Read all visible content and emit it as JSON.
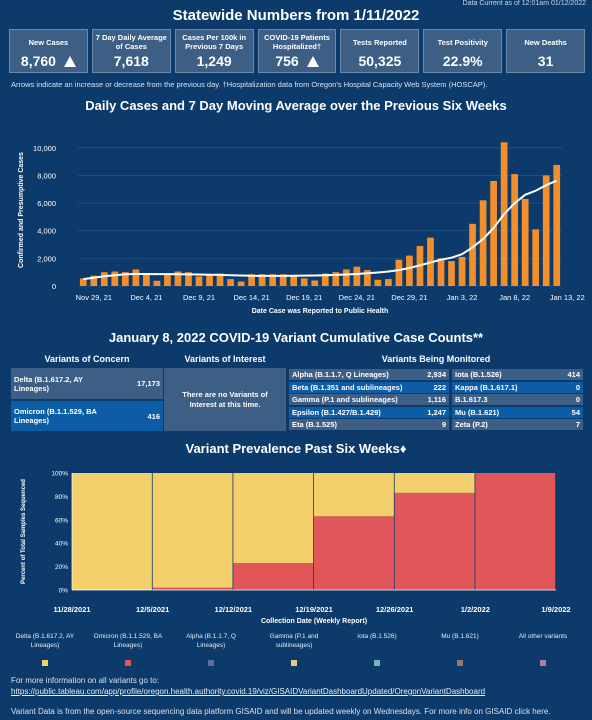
{
  "data_current": "Data Current as of 12:01am 01/12/2022",
  "title": "Statewide Numbers from 1/11/2022",
  "stats": [
    {
      "label": "New Cases",
      "value": "8,760",
      "arrow": "up"
    },
    {
      "label": "7 Day Daily Average of Cases",
      "value": "7,618",
      "arrow": ""
    },
    {
      "label": "Cases Per 100k in Previous 7 Days",
      "value": "1,249",
      "arrow": ""
    },
    {
      "label": "COVID-19 Patients Hospitalized†",
      "value": "756",
      "arrow": "up"
    },
    {
      "label": "Tests Reported",
      "value": "50,325",
      "arrow": ""
    },
    {
      "label": "Test Positivity",
      "value": "22.9%",
      "arrow": ""
    },
    {
      "label": "New Deaths",
      "value": "31",
      "arrow": ""
    }
  ],
  "arrow_note": "Arrows indicate an increase or decrease from the previous day. †Hospitalization data from Oregon's Hospital Capacity Web System (HOSCAP).",
  "cases_chart": {
    "title": "Daily Cases and 7 Day Moving Average over the Previous Six Weeks",
    "ylabel": "Confirmed and Presumptive Cases",
    "xlabel": "Date Case was Reported to Public Health",
    "colors": {
      "bar": "#f28e2b",
      "line": "#ffffff"
    }
  },
  "chart_data": [
    {
      "type": "bar",
      "title": "Daily Cases and 7 Day Moving Average over the Previous Six Weeks",
      "xlabel": "Date Case was Reported to Public Health",
      "ylabel": "Confirmed and Presumptive Cases",
      "ylim": [
        0,
        11000
      ],
      "yticks": [
        0,
        2000,
        4000,
        6000,
        8000,
        10000
      ],
      "ytick_labels": [
        "0",
        "2,000",
        "4,000",
        "6,000",
        "8,000",
        "10,000"
      ],
      "x_start": "Nov 28, 21",
      "x_tick_labels": [
        {
          "label": "Nov 29, 21",
          "index": 1
        },
        {
          "label": "Dec 4, 21",
          "index": 6
        },
        {
          "label": "Dec 9, 21",
          "index": 11
        },
        {
          "label": "Dec 14, 21",
          "index": 16
        },
        {
          "label": "Dec 19, 21",
          "index": 21
        },
        {
          "label": "Dec 24, 21",
          "index": 26
        },
        {
          "label": "Dec 29, 21",
          "index": 31
        },
        {
          "label": "Jan 3, 22",
          "index": 36
        },
        {
          "label": "Jan 8, 22",
          "index": 41
        },
        {
          "label": "Jan 13, 22",
          "index": 46
        }
      ],
      "series": [
        {
          "name": "Daily cases",
          "type": "bar",
          "values": [
            550,
            750,
            1000,
            1050,
            1000,
            1200,
            900,
            380,
            850,
            1050,
            1000,
            700,
            780,
            900,
            500,
            330,
            850,
            850,
            850,
            850,
            780,
            550,
            400,
            900,
            1000,
            1200,
            1400,
            1150,
            450,
            500,
            1900,
            2200,
            2900,
            3500,
            2000,
            1800,
            2100,
            4500,
            6200,
            7600,
            10400,
            8100,
            6300,
            4100,
            8000,
            8760
          ]
        },
        {
          "name": "7 day moving average",
          "type": "line",
          "values": [
            500,
            600,
            700,
            780,
            850,
            870,
            870,
            860,
            860,
            850,
            840,
            830,
            820,
            800,
            780,
            760,
            740,
            730,
            730,
            730,
            740,
            750,
            760,
            780,
            800,
            830,
            870,
            920,
            980,
            1050,
            1150,
            1300,
            1500,
            1700,
            1900,
            2050,
            2300,
            2800,
            3400,
            4200,
            5200,
            6000,
            6600,
            6900,
            7300,
            7618
          ]
        }
      ]
    },
    {
      "type": "bar",
      "title": "Variant Prevalence Past Six Weeks",
      "xlabel": "Collection Date (Weekly Report)",
      "ylabel": "Percent of Total Samples Sequenced",
      "ylim": [
        0,
        100
      ],
      "yticks": [
        0,
        20,
        40,
        60,
        80,
        100
      ],
      "categories": [
        "11/28/2021",
        "12/5/2021",
        "12/12/2021",
        "12/19/2021",
        "12/26/2021",
        "1/2/2022"
      ],
      "x_tick_labels": [
        "11/28/2021",
        "12/5/2021",
        "12/12/2021",
        "12/19/2021",
        "12/26/2021",
        "1/2/2022",
        "1/9/2022"
      ],
      "stacked": true,
      "series": [
        {
          "name": "Omicron (B.1.1.529, BA Lineages)",
          "values": [
            0,
            2,
            23,
            63,
            83,
            100
          ]
        },
        {
          "name": "Delta (B.1.617.2, AY Lineages)",
          "values": [
            100,
            98,
            77,
            37,
            17,
            0
          ]
        }
      ]
    }
  ],
  "variant_counts": {
    "title": "January 8, 2022 COVID-19 Variant Cumulative Case Counts**",
    "concern_header": "Variants of Concern",
    "interest_header": "Variants of Interest",
    "monitored_header": "Variants Being Monitored",
    "concern": [
      {
        "name": "Delta (B.1.617.2, AY Lineages)",
        "count": "17,173"
      },
      {
        "name": "Omicron (B.1.1.529, BA Lineages)",
        "count": "416"
      }
    ],
    "interest_text": "There are no Variants of Interest at this time.",
    "monitored_left": [
      {
        "name": "Alpha (B.1.1.7, Q Lineages)",
        "count": "2,934"
      },
      {
        "name": "Beta (B.1.351 and sublineages)",
        "count": "222"
      },
      {
        "name": "Gamma (P.1 and sublineages)",
        "count": "1,116"
      },
      {
        "name": "Epsilon (B.1.427/B.1.429)",
        "count": "1,247"
      },
      {
        "name": "Eta (B.1.525)",
        "count": "9"
      }
    ],
    "monitored_right": [
      {
        "name": "Iota (B.1.526)",
        "count": "414"
      },
      {
        "name": "Kappa (B.1.617.1)",
        "count": "0"
      },
      {
        "name": "B.1.617.3",
        "count": "0"
      },
      {
        "name": "Mu (B.1.621)",
        "count": "54"
      },
      {
        "name": "Zeta (P.2)",
        "count": "7"
      }
    ]
  },
  "prevalence_chart": {
    "title": "Variant Prevalence Past Six Weeks♦",
    "ylabel": "Percent of Total Samples Sequenced",
    "xlabel": "Collection Date (Weekly Report)"
  },
  "legend": [
    {
      "label": "Delta (B.1.617.2, AY Lineages)",
      "color": "#f3d06b"
    },
    {
      "label": "Omicron (B.1.1.529, BA Lineages)",
      "color": "#e15759"
    },
    {
      "label": "Alpha (B.1.1.7, Q Lineages)",
      "color": "#5a6fa3"
    },
    {
      "label": "Gamma (P.1 and sublineages)",
      "color": "#e5c88a"
    },
    {
      "label": "Iota (B.1.526)",
      "color": "#76b7b2"
    },
    {
      "label": "Mu (B.1.621)",
      "color": "#9c755f"
    },
    {
      "label": "All other variants",
      "color": "#b07aa1"
    }
  ],
  "footer": {
    "more_info": "For more information on all variants go to:",
    "link": "https://public.tableau.com/app/profile/oregon.health.authority.covid.19/viz/GISAIDVariantDashboardUpdated/OregonVariantDashboard",
    "gisaid_note": "Variant Data is from the open-source sequencing data platform GISAID and will be updated weekly on Wednesdays. For more info on GISAID click here."
  }
}
